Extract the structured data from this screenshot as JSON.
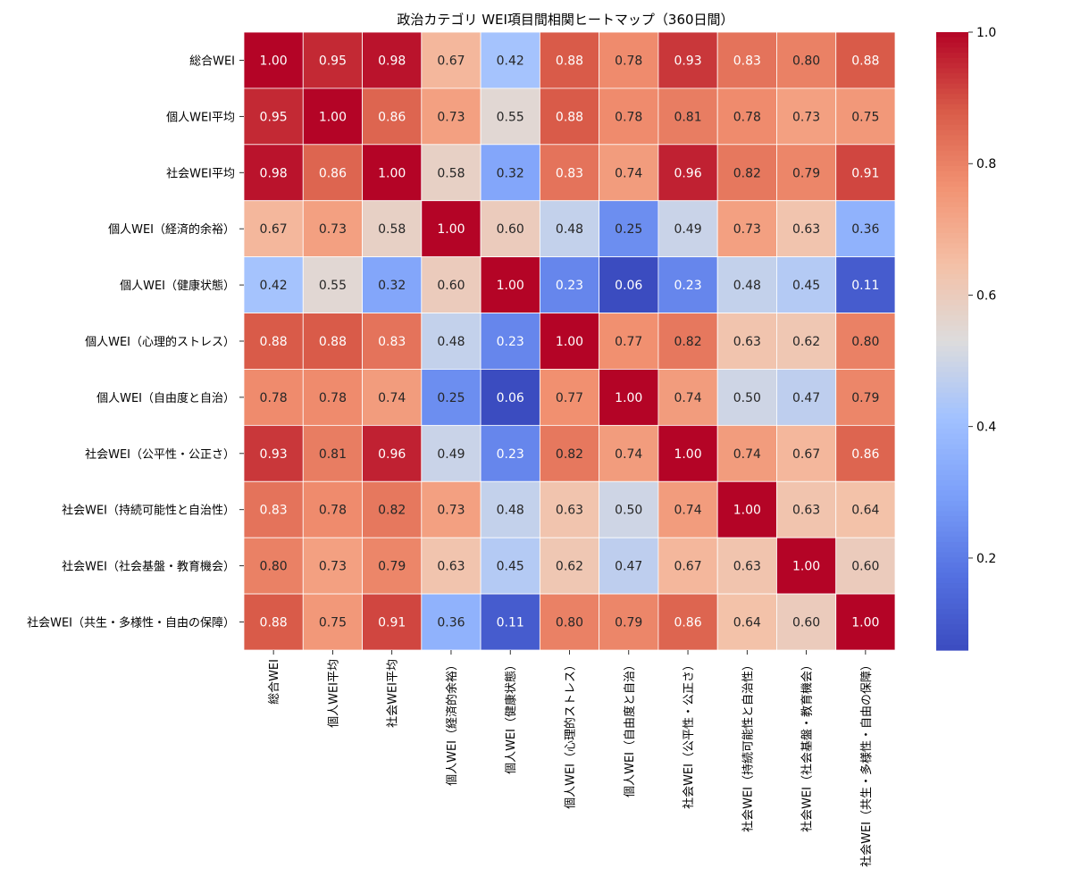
{
  "chart_data": {
    "type": "heatmap",
    "title": "政治カテゴリ WEI項目間相関ヒートマップ（360日間）",
    "row_labels": [
      "総合WEI",
      "個人WEI平均",
      "社会WEI平均",
      "個人WEI（経済的余裕）",
      "個人WEI（健康状態）",
      "個人WEI（心理的ストレス）",
      "個人WEI（自由度と自治）",
      "社会WEI（公平性・公正さ）",
      "社会WEI（持続可能性と自治性）",
      "社会WEI（社会基盤・教育機会）",
      "社会WEI（共生・多様性・自由の保障）"
    ],
    "col_labels": [
      "総合WEI",
      "個人WEI平均",
      "社会WEI平均",
      "個人WEI（経済的余裕）",
      "個人WEI（健康状態）",
      "個人WEI（心理的ストレス）",
      "個人WEI（自由度と自治）",
      "社会WEI（公平性・公正さ）",
      "社会WEI（持続可能性と自治性）",
      "社会WEI（社会基盤・教育機会）",
      "社会WEI（共生・多様性・自由の保障）"
    ],
    "values": [
      [
        1.0,
        0.95,
        0.98,
        0.67,
        0.42,
        0.88,
        0.78,
        0.93,
        0.83,
        0.8,
        0.88
      ],
      [
        0.95,
        1.0,
        0.86,
        0.73,
        0.55,
        0.88,
        0.78,
        0.81,
        0.78,
        0.73,
        0.75
      ],
      [
        0.98,
        0.86,
        1.0,
        0.58,
        0.32,
        0.83,
        0.74,
        0.96,
        0.82,
        0.79,
        0.91
      ],
      [
        0.67,
        0.73,
        0.58,
        1.0,
        0.6,
        0.48,
        0.25,
        0.49,
        0.73,
        0.63,
        0.36
      ],
      [
        0.42,
        0.55,
        0.32,
        0.6,
        1.0,
        0.23,
        0.06,
        0.23,
        0.48,
        0.45,
        0.11
      ],
      [
        0.88,
        0.88,
        0.83,
        0.48,
        0.23,
        1.0,
        0.77,
        0.82,
        0.63,
        0.62,
        0.8
      ],
      [
        0.78,
        0.78,
        0.74,
        0.25,
        0.06,
        0.77,
        1.0,
        0.74,
        0.5,
        0.47,
        0.79
      ],
      [
        0.93,
        0.81,
        0.96,
        0.49,
        0.23,
        0.82,
        0.74,
        1.0,
        0.74,
        0.67,
        0.86
      ],
      [
        0.83,
        0.78,
        0.82,
        0.73,
        0.48,
        0.63,
        0.5,
        0.74,
        1.0,
        0.63,
        0.64
      ],
      [
        0.8,
        0.73,
        0.79,
        0.63,
        0.45,
        0.62,
        0.47,
        0.67,
        0.63,
        1.0,
        0.6
      ],
      [
        0.88,
        0.75,
        0.91,
        0.36,
        0.11,
        0.8,
        0.79,
        0.86,
        0.64,
        0.6,
        1.0
      ]
    ],
    "colormap": "coolwarm",
    "colorbar": {
      "min": 0.06,
      "max": 1.0,
      "ticks": [
        0.2,
        0.4,
        0.6,
        0.8,
        1.0
      ],
      "tick_labels": [
        "0.2",
        "0.4",
        "0.6",
        "0.8",
        "1.0"
      ]
    },
    "annotation_format": "2 decimals"
  }
}
